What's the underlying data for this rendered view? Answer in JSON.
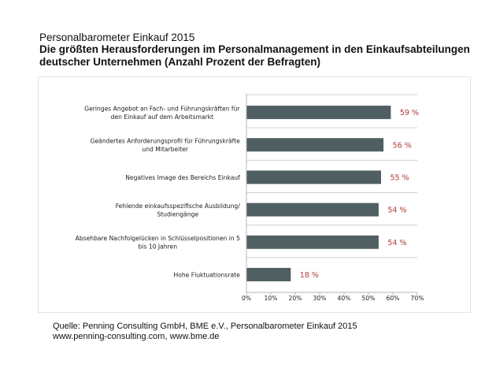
{
  "header": {
    "supertitle": "Personalbarometer Einkauf 2015",
    "title_line1": "Die größten Herausforderungen im Personalmanagement in den Einkaufsabteilungen",
    "title_line2": "deutscher Unternehmen (Anzahl Prozent der Befragten)"
  },
  "source": {
    "line1": "Quelle: Penning Consulting GmbH, BME e.V., Personalbarometer Einkauf 2015",
    "line2": "www.penning-consulting.com, www.bme.de"
  },
  "colors": {
    "bar": "#4f5e61",
    "value_label": "#b03a3a",
    "grid": "#d0d0d0",
    "axis": "#b5b5b5"
  },
  "chart_data": {
    "type": "bar",
    "orientation": "horizontal",
    "title": "Die größten Herausforderungen im Personalmanagement in den Einkaufsabteilungen deutscher Unternehmen (Anzahl Prozent der Befragten)",
    "xlabel": "",
    "ylabel": "",
    "xlim": [
      0,
      70
    ],
    "ticks": [
      "0%",
      "10%",
      "20%",
      "30%",
      "40%",
      "50%",
      "60%",
      "70%"
    ],
    "tick_values": [
      0,
      10,
      20,
      30,
      40,
      50,
      60,
      70
    ],
    "grid": "horizontal separators",
    "legend": "none",
    "categories": [
      [
        "Geringes Angebot an Fach- und Führungskräften für",
        "den Einkauf auf dem Arbeitsmarkt"
      ],
      [
        "Geändertes Anforderungsprofil für Führungskräfte",
        "und Mitarbeiter"
      ],
      [
        "Negatives Image des Bereichs Einkauf"
      ],
      [
        "Fehlende einkaufsspezifische Ausbildung/",
        "Studiengänge"
      ],
      [
        "Absehbare Nachfolgelücken in Schlüsselpositionen in 5",
        "bis 10 Jahren"
      ],
      [
        "Hohe Fluktuationsrate"
      ]
    ],
    "values": [
      59,
      56,
      55,
      54,
      54,
      18
    ],
    "value_labels": [
      "59 %",
      "56 %",
      "55 %",
      "54 %",
      "54 %",
      "18 %"
    ]
  }
}
